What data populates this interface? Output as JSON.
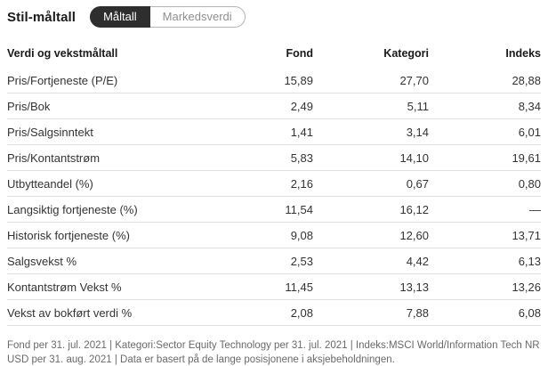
{
  "page": {
    "title": "Stil-måltall"
  },
  "toggle": {
    "options": [
      {
        "label": "Måltall",
        "selected": true
      },
      {
        "label": "Markedsverdi",
        "selected": false
      }
    ]
  },
  "table": {
    "headers": {
      "label": "Verdi og vekstmåltall",
      "fond": "Fond",
      "kategori": "Kategori",
      "indeks": "Indeks"
    },
    "rows": [
      {
        "label": "Pris/Fortjeneste (P/E)",
        "fond": "15,89",
        "kategori": "27,70",
        "indeks": "28,88"
      },
      {
        "label": "Pris/Bok",
        "fond": "2,49",
        "kategori": "5,11",
        "indeks": "8,34"
      },
      {
        "label": "Pris/Salgsinntekt",
        "fond": "1,41",
        "kategori": "3,14",
        "indeks": "6,01"
      },
      {
        "label": "Pris/Kontantstrøm",
        "fond": "5,83",
        "kategori": "14,10",
        "indeks": "19,61"
      },
      {
        "label": "Utbytteandel (%)",
        "fond": "2,16",
        "kategori": "0,67",
        "indeks": "0,80"
      },
      {
        "label": "Langsiktig fortjeneste (%)",
        "fond": "11,54",
        "kategori": "16,12",
        "indeks": "—"
      },
      {
        "label": "Historisk fortjeneste (%)",
        "fond": "9,08",
        "kategori": "12,60",
        "indeks": "13,71"
      },
      {
        "label": "Salgsvekst %",
        "fond": "2,53",
        "kategori": "4,42",
        "indeks": "6,13"
      },
      {
        "label": "Kontantstrøm Vekst %",
        "fond": "11,45",
        "kategori": "13,13",
        "indeks": "13,26"
      },
      {
        "label": "Vekst av bokført verdi %",
        "fond": "2,08",
        "kategori": "7,88",
        "indeks": "6,08"
      }
    ]
  },
  "footer": {
    "text": "Fond per 31. jul. 2021 | Kategori:Sector Equity Technology per 31. jul. 2021 | Indeks:MSCI World/Information Tech NR USD per 31. aug. 2021 | Data er basert på de lange posisjonene i aksjebeholdningen."
  },
  "colors": {
    "toggle_selected_bg": "#2e2e2e",
    "toggle_selected_text": "#ffffff",
    "toggle_unselected_text": "#8f8f8f",
    "toggle_border": "#b5b5b5",
    "row_border": "#e0e0e0",
    "text_primary": "#1a1a1a",
    "text_rows": "#333333",
    "footer_text": "#6a6a6a"
  }
}
